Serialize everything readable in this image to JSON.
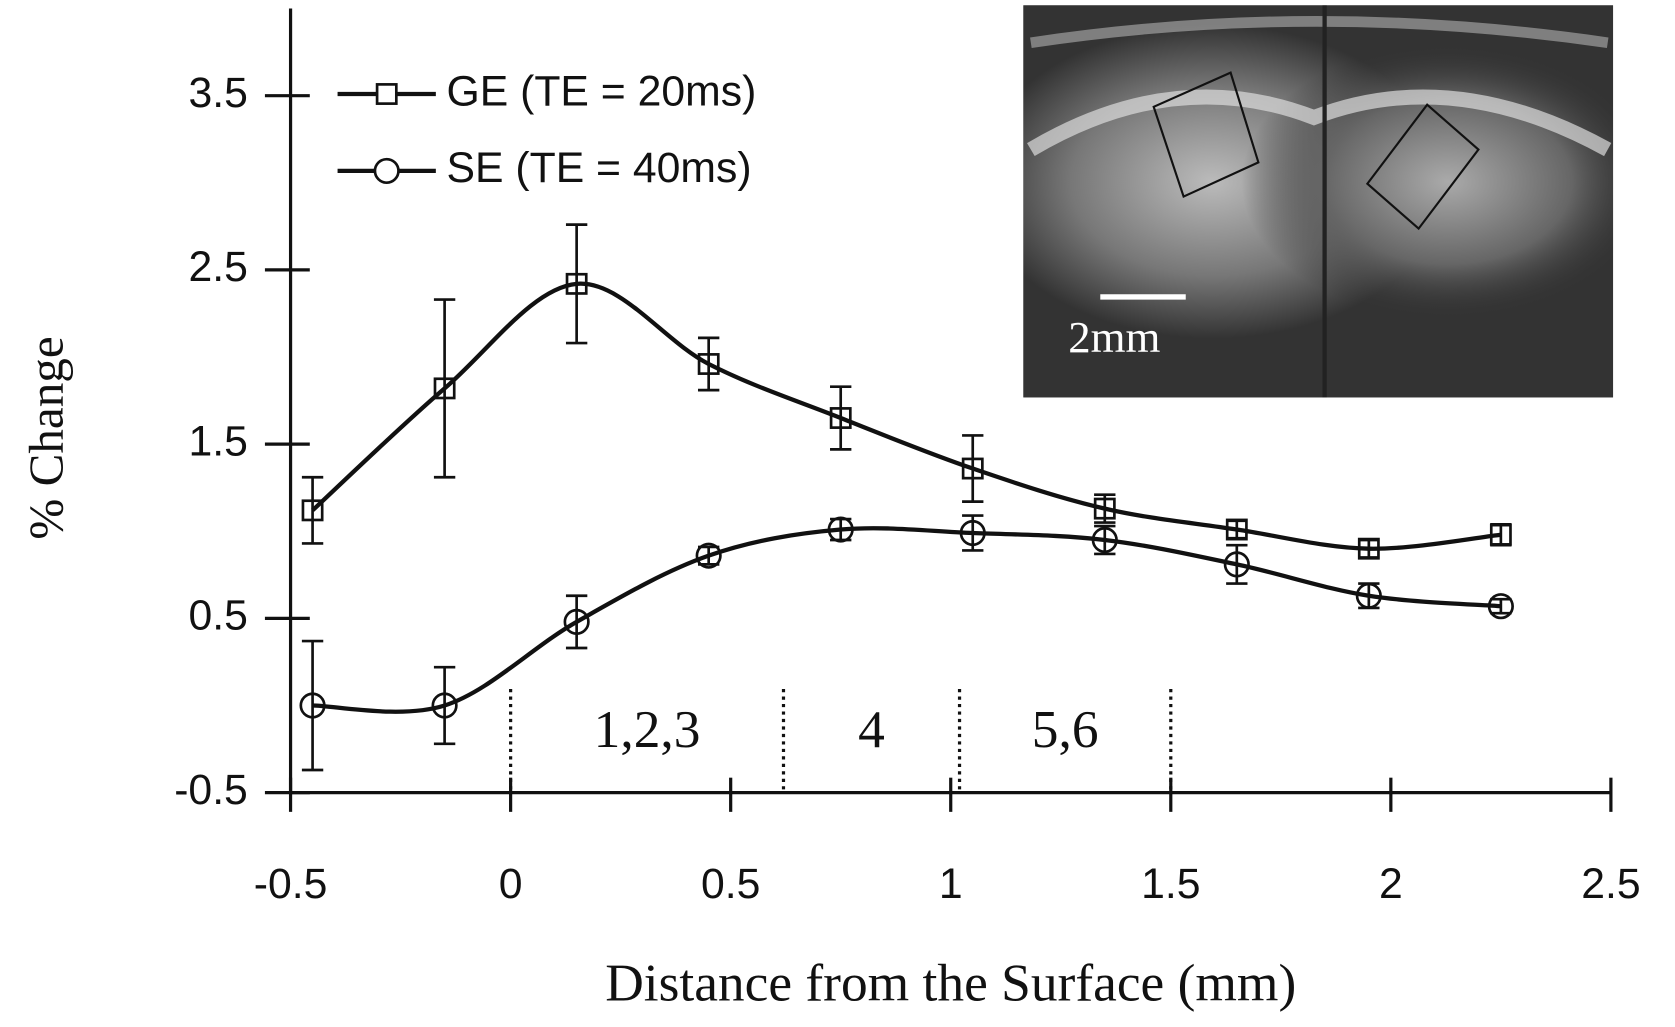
{
  "chart_data": {
    "type": "line",
    "y_label": "% Change",
    "x_label": "Distance from the Surface (mm)",
    "x": [
      -0.45,
      -0.15,
      0.15,
      0.45,
      0.75,
      1.05,
      1.35,
      1.65,
      1.95,
      2.25
    ],
    "series": [
      {
        "name": "GE (TE = 20ms)",
        "color": "#111111",
        "marker": "square",
        "values": [
          1.12,
          1.82,
          2.42,
          1.96,
          1.65,
          1.36,
          1.13,
          1.01,
          0.9,
          0.98
        ],
        "errors": [
          0.19,
          0.51,
          0.34,
          0.15,
          0.18,
          0.19,
          0.08,
          0.05,
          0.05,
          0.06
        ]
      },
      {
        "name": "SE (TE = 40ms)",
        "color": "#111111",
        "marker": "circle",
        "values": [
          0.0,
          0.0,
          0.48,
          0.86,
          1.01,
          0.99,
          0.95,
          0.81,
          0.63,
          0.57
        ],
        "errors": [
          0.37,
          0.22,
          0.15,
          0.05,
          0.06,
          0.1,
          0.08,
          0.11,
          0.07,
          0.04
        ]
      }
    ],
    "xlim": [
      -0.5,
      2.5
    ],
    "ylim": [
      -0.5,
      4.0
    ],
    "xticks": [
      -0.5,
      0,
      0.5,
      1,
      1.5,
      2,
      2.5
    ],
    "yticks": [
      -0.5,
      0.5,
      1.5,
      2.5,
      3.5
    ],
    "layer_dividers": [
      0,
      0.62,
      1.02,
      1.5
    ],
    "layer_labels": [
      "1,2,3",
      "4",
      "5,6"
    ],
    "inset_scale_label": "2mm",
    "legend": "upper left"
  }
}
